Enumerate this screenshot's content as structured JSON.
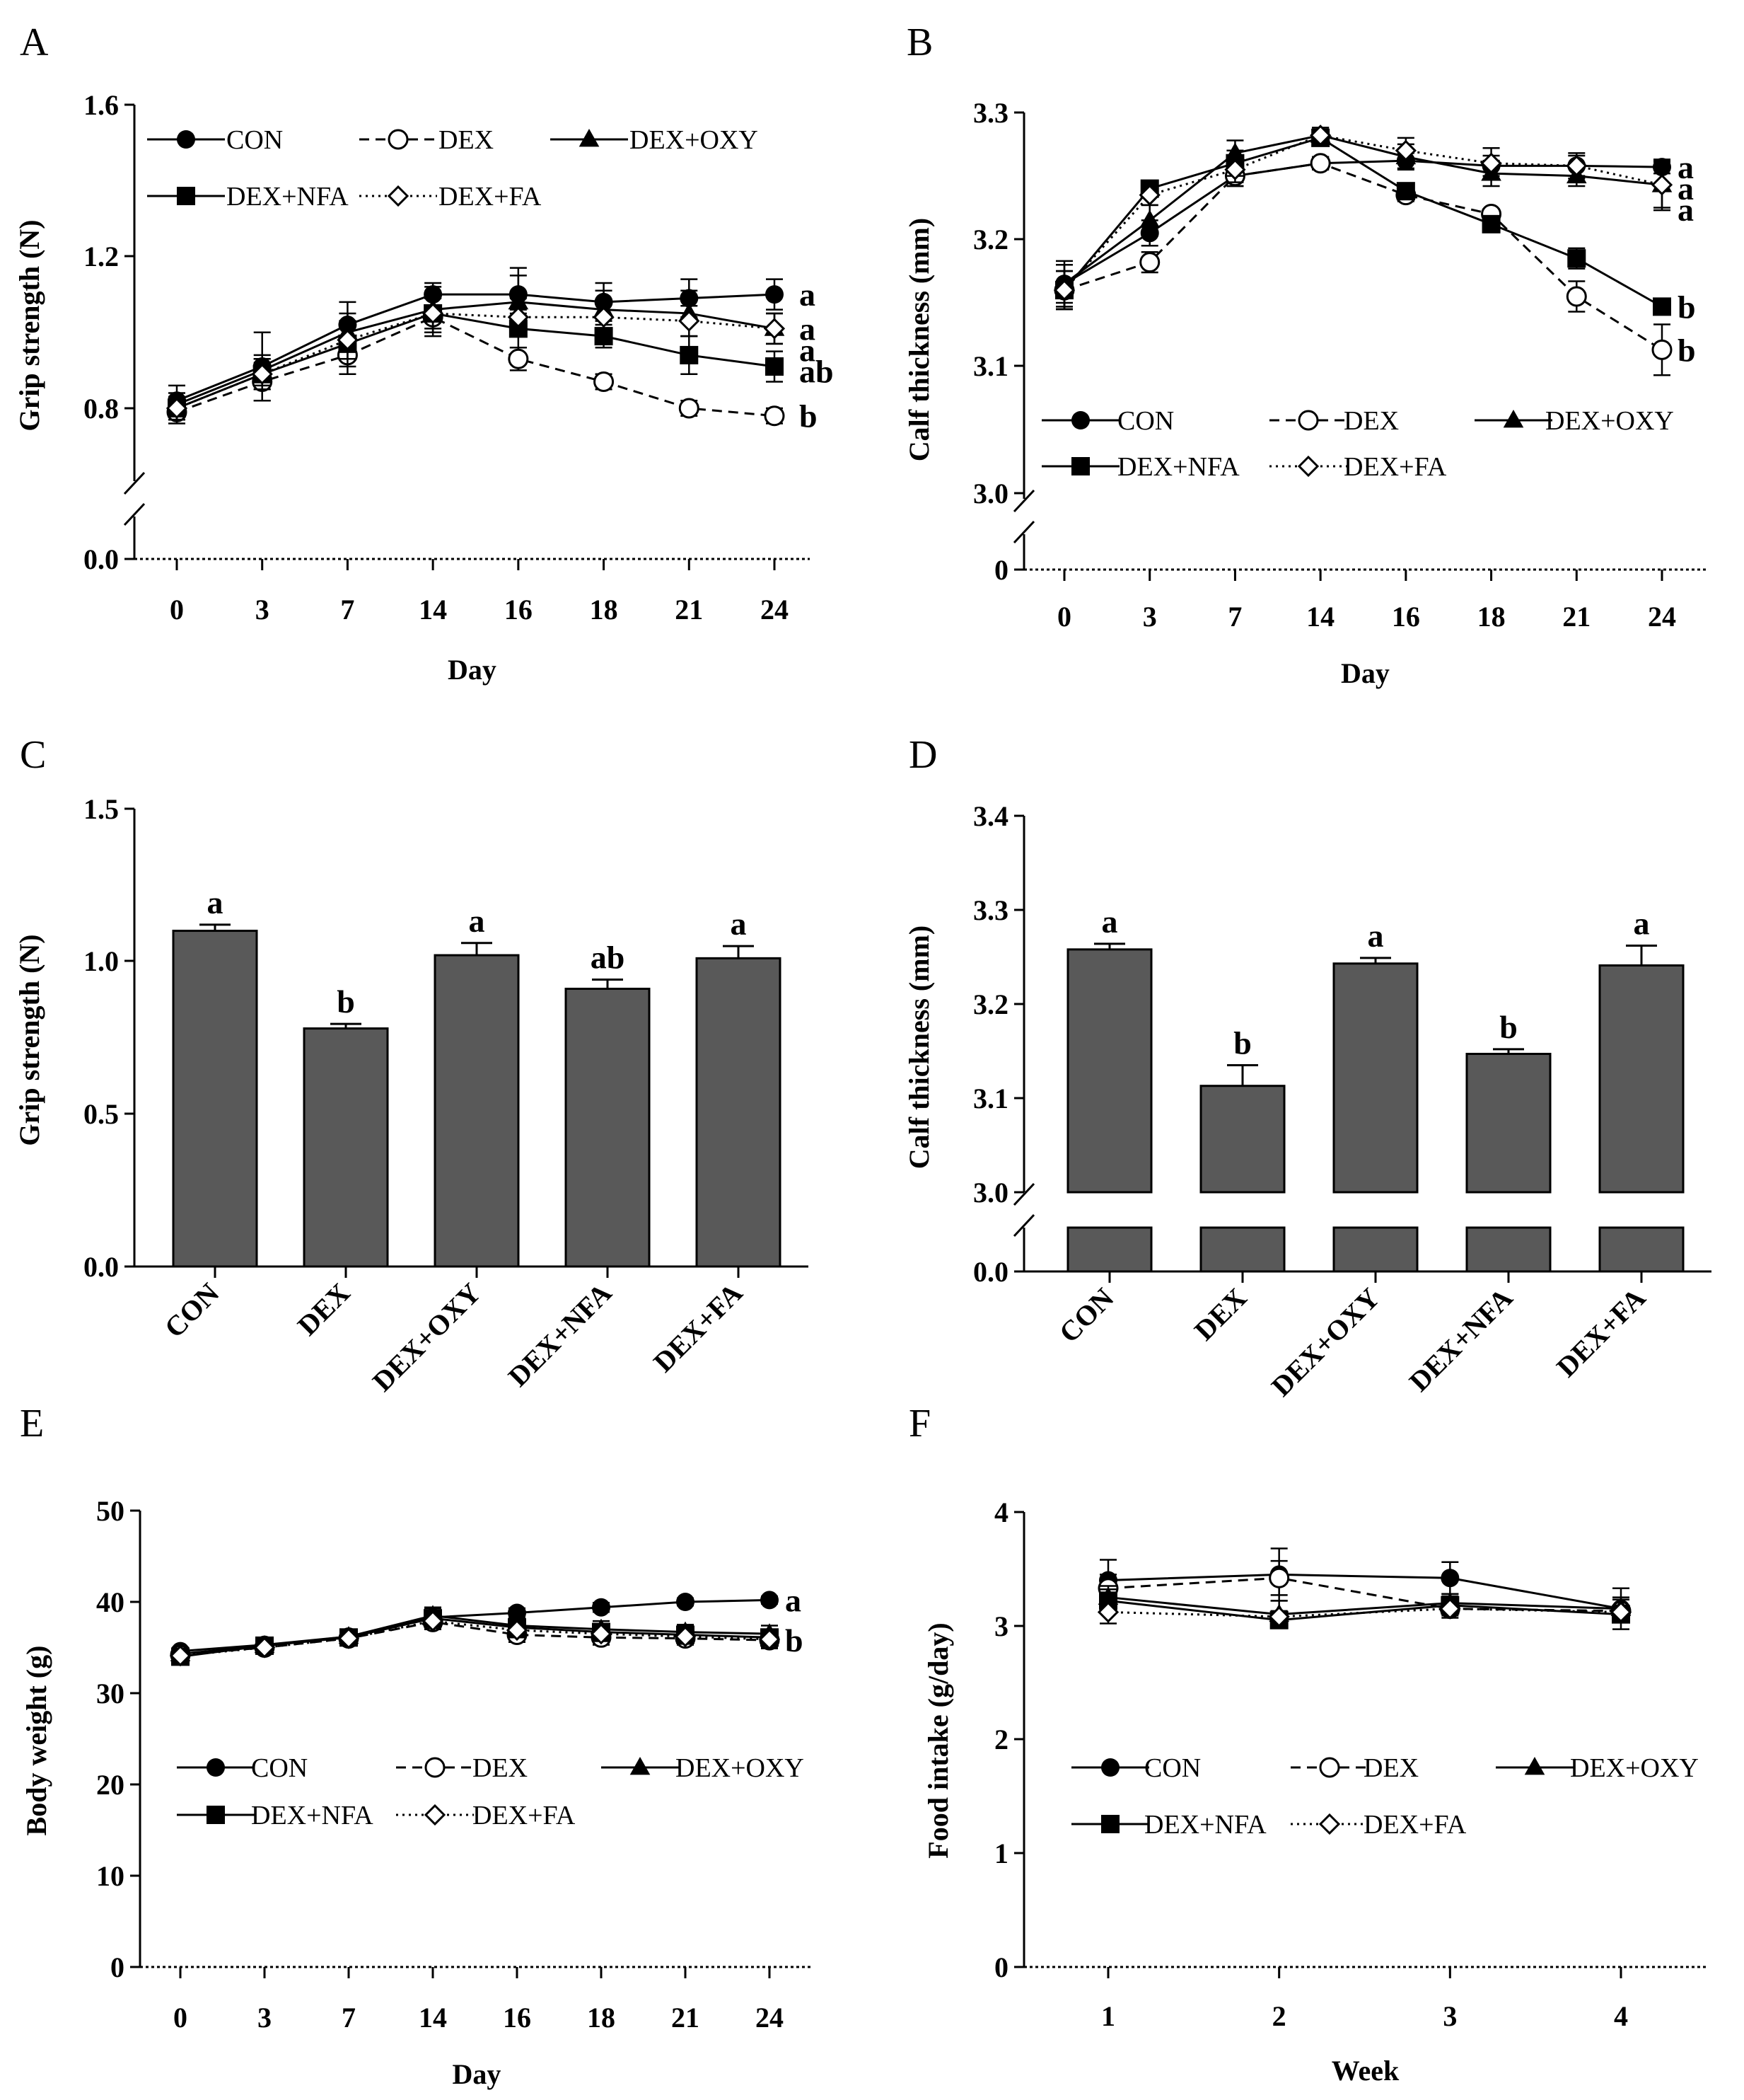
{
  "colors": {
    "bar_fill": "#595959",
    "ink": "#000000",
    "background": "#ffffff"
  },
  "groups": [
    "CON",
    "DEX",
    "DEX+OXY",
    "DEX+NFA",
    "DEX+FA"
  ],
  "chart_data": [
    {
      "panel": "A",
      "type": "line",
      "ylabel": "Grip strength (N)",
      "xlabel": "Day",
      "categories": [
        "0",
        "3",
        "7",
        "14",
        "16",
        "18",
        "21",
        "24"
      ],
      "yticks": [
        "0.0",
        "0.8",
        "1.2",
        "1.6"
      ],
      "ylim": [
        0.0,
        1.6
      ],
      "axis_break": [
        0.0,
        0.6
      ],
      "series": [
        {
          "name": "CON",
          "values": [
            0.82,
            0.91,
            1.02,
            1.1,
            1.1,
            1.08,
            1.09,
            1.1
          ],
          "err": [
            0.04,
            0.09,
            0.06,
            0.03,
            0.05,
            0.05,
            0.05,
            0.04
          ],
          "marker": "filled-circle",
          "dash": "solid"
        },
        {
          "name": "DEX",
          "values": [
            0.79,
            0.87,
            0.94,
            1.04,
            0.93,
            0.87,
            0.8,
            0.78
          ],
          "err": [
            0.03,
            0.05,
            0.05,
            0.05,
            0.03,
            0.02,
            0.02,
            0.02
          ],
          "marker": "open-circle",
          "dash": "dashed"
        },
        {
          "name": "DEX+OXY",
          "values": [
            0.81,
            0.9,
            1.0,
            1.06,
            1.08,
            1.06,
            1.05,
            1.01
          ],
          "err": [
            0.03,
            0.04,
            0.05,
            0.06,
            0.09,
            0.05,
            0.06,
            0.04
          ],
          "marker": "filled-triangle",
          "dash": "solid"
        },
        {
          "name": "DEX+NFA",
          "values": [
            0.8,
            0.89,
            0.97,
            1.05,
            1.01,
            0.99,
            0.94,
            0.91
          ],
          "err": [
            0.03,
            0.04,
            0.06,
            0.04,
            0.05,
            0.03,
            0.05,
            0.04
          ],
          "marker": "filled-square",
          "dash": "solid"
        },
        {
          "name": "DEX+FA",
          "values": [
            0.8,
            0.89,
            0.98,
            1.05,
            1.04,
            1.04,
            1.03,
            1.01
          ],
          "err": [
            0.03,
            0.04,
            0.05,
            0.05,
            0.05,
            0.04,
            0.04,
            0.04
          ],
          "marker": "open-diamond",
          "dash": "dotted"
        }
      ],
      "sig_labels": [
        {
          "series": "CON",
          "text": "a"
        },
        {
          "series": "DEX+OXY",
          "text": "a"
        },
        {
          "series": "DEX+FA",
          "text": "a"
        },
        {
          "series": "DEX+NFA",
          "text": "ab"
        },
        {
          "series": "DEX",
          "text": "b"
        }
      ]
    },
    {
      "panel": "B",
      "type": "line",
      "ylabel": "Calf thickness (mm)",
      "xlabel": "Day",
      "categories": [
        "0",
        "3",
        "7",
        "14",
        "16",
        "18",
        "21",
        "24"
      ],
      "yticks": [
        "0",
        "3.0",
        "3.1",
        "3.2",
        "3.3"
      ],
      "ylim": [
        0.0,
        3.3
      ],
      "axis_break": [
        0.0,
        3.0
      ],
      "series": [
        {
          "name": "CON",
          "values": [
            3.165,
            3.205,
            3.25,
            3.26,
            3.262,
            3.258,
            3.258,
            3.257
          ],
          "err": [
            0.015,
            0.01,
            0.008,
            0.005,
            0.006,
            0.008,
            0.008,
            0.005
          ],
          "marker": "filled-circle",
          "dash": "solid"
        },
        {
          "name": "DEX",
          "values": [
            3.16,
            3.182,
            3.25,
            3.26,
            3.235,
            3.22,
            3.155,
            3.113
          ],
          "err": [
            0.015,
            0.008,
            0.008,
            0.005,
            0.005,
            0.004,
            0.012,
            0.02
          ],
          "marker": "open-circle",
          "dash": "dashed"
        },
        {
          "name": "DEX+OXY",
          "values": [
            3.165,
            3.215,
            3.268,
            3.282,
            3.265,
            3.252,
            3.25,
            3.243
          ],
          "err": [
            0.018,
            0.012,
            0.01,
            0.006,
            0.01,
            0.01,
            0.008,
            0.02
          ],
          "marker": "filled-triangle",
          "dash": "solid"
        },
        {
          "name": "DEX+NFA",
          "values": [
            3.16,
            3.24,
            3.26,
            3.28,
            3.238,
            3.212,
            3.185,
            3.147
          ],
          "err": [
            0.015,
            0.006,
            0.01,
            0.006,
            0.006,
            0.006,
            0.008,
            0.005
          ],
          "marker": "filled-square",
          "dash": "solid"
        },
        {
          "name": "DEX+FA",
          "values": [
            3.16,
            3.235,
            3.255,
            3.282,
            3.27,
            3.26,
            3.258,
            3.243
          ],
          "err": [
            0.015,
            0.008,
            0.01,
            0.006,
            0.01,
            0.012,
            0.01,
            0.018
          ],
          "marker": "open-diamond",
          "dash": "dotted"
        }
      ],
      "sig_labels": [
        {
          "series": "CON",
          "text": "a"
        },
        {
          "series": "DEX+FA",
          "text": "a"
        },
        {
          "series": "DEX+OXY",
          "text": "a"
        },
        {
          "series": "DEX+NFA",
          "text": "b"
        },
        {
          "series": "DEX",
          "text": "b"
        }
      ]
    },
    {
      "panel": "C",
      "type": "bar",
      "ylabel": "Grip strength (N)",
      "categories": [
        "CON",
        "DEX",
        "DEX+OXY",
        "DEX+NFA",
        "DEX+FA"
      ],
      "values": [
        1.1,
        0.78,
        1.02,
        0.91,
        1.01
      ],
      "err": [
        0.02,
        0.015,
        0.04,
        0.03,
        0.04
      ],
      "sig": [
        "a",
        "b",
        "a",
        "ab",
        "a"
      ],
      "yticks": [
        "0.0",
        "0.5",
        "1.0",
        "1.5"
      ],
      "ylim": [
        0.0,
        1.5
      ]
    },
    {
      "panel": "D",
      "type": "bar",
      "ylabel": "Calf thickness (mm)",
      "categories": [
        "CON",
        "DEX",
        "DEX+OXY",
        "DEX+NFA",
        "DEX+FA"
      ],
      "values": [
        3.258,
        3.113,
        3.243,
        3.147,
        3.241
      ],
      "err": [
        0.006,
        0.022,
        0.006,
        0.005,
        0.021
      ],
      "sig": [
        "a",
        "b",
        "a",
        "b",
        "a"
      ],
      "yticks": [
        "0.0",
        "3.0",
        "3.1",
        "3.2",
        "3.3",
        "3.4"
      ],
      "ylim": [
        0.0,
        3.4
      ],
      "axis_break": [
        0.0,
        3.0
      ]
    },
    {
      "panel": "E",
      "type": "line",
      "ylabel": "Body weight  (g)",
      "xlabel": "Day",
      "categories": [
        "0",
        "3",
        "7",
        "14",
        "16",
        "18",
        "21",
        "24"
      ],
      "yticks": [
        "0",
        "10",
        "20",
        "30",
        "40",
        "50"
      ],
      "ylim": [
        0,
        50
      ],
      "series": [
        {
          "name": "CON",
          "values": [
            34.6,
            35.3,
            36.2,
            38.3,
            38.8,
            39.4,
            40.0,
            40.2
          ],
          "err": [
            0.4,
            0.5,
            0.5,
            1.0,
            0.5,
            0.5,
            0.4,
            0.4
          ],
          "marker": "filled-circle",
          "dash": "solid"
        },
        {
          "name": "DEX",
          "values": [
            34.2,
            35.0,
            36.0,
            37.8,
            36.4,
            36.1,
            36.0,
            35.8
          ],
          "err": [
            0.4,
            0.5,
            0.6,
            0.8,
            0.8,
            0.8,
            0.7,
            0.9
          ],
          "marker": "open-circle",
          "dash": "dashed"
        },
        {
          "name": "DEX+OXY",
          "values": [
            34.3,
            35.2,
            36.2,
            38.5,
            37.4,
            37.0,
            36.7,
            36.5
          ],
          "err": [
            0.4,
            0.5,
            0.5,
            0.9,
            0.8,
            0.9,
            0.8,
            0.9
          ],
          "marker": "filled-triangle",
          "dash": "solid"
        },
        {
          "name": "DEX+NFA",
          "values": [
            34.0,
            35.2,
            36.1,
            38.2,
            37.2,
            36.7,
            36.4,
            36.1
          ],
          "err": [
            0.4,
            0.5,
            0.5,
            0.9,
            0.8,
            0.9,
            0.8,
            0.9
          ],
          "marker": "filled-square",
          "dash": "solid"
        },
        {
          "name": "DEX+FA",
          "values": [
            34.1,
            35.0,
            36.0,
            37.9,
            36.9,
            36.5,
            36.2,
            35.9
          ],
          "err": [
            0.4,
            0.5,
            0.5,
            0.8,
            0.8,
            0.8,
            0.8,
            0.9
          ],
          "marker": "open-diamond",
          "dash": "dotted"
        }
      ],
      "sig_labels": [
        {
          "series": "CON",
          "text": "a"
        },
        {
          "series": "DEX",
          "text": "b"
        }
      ]
    },
    {
      "panel": "F",
      "type": "line",
      "ylabel": "Food intake (g/day)",
      "xlabel": "Week",
      "categories": [
        "1",
        "2",
        "3",
        "4"
      ],
      "yticks": [
        "0",
        "1",
        "2",
        "3",
        "4"
      ],
      "ylim": [
        0,
        4
      ],
      "series": [
        {
          "name": "CON",
          "values": [
            3.4,
            3.45,
            3.42,
            3.15
          ],
          "err": [
            0.18,
            0.23,
            0.14,
            0.18
          ],
          "marker": "filled-circle",
          "dash": "solid"
        },
        {
          "name": "DEX",
          "values": [
            3.33,
            3.42,
            3.15,
            3.13
          ],
          "err": [
            0.12,
            0.15,
            0.08,
            0.1
          ],
          "marker": "open-circle",
          "dash": "dashed"
        },
        {
          "name": "DEX+OXY",
          "values": [
            3.25,
            3.1,
            3.2,
            3.15
          ],
          "err": [
            0.1,
            0.12,
            0.08,
            0.1
          ],
          "marker": "filled-triangle",
          "dash": "solid"
        },
        {
          "name": "DEX+NFA",
          "values": [
            3.22,
            3.05,
            3.18,
            3.1
          ],
          "err": [
            0.1,
            0.05,
            0.08,
            0.05
          ],
          "marker": "filled-square",
          "dash": "solid"
        },
        {
          "name": "DEX+FA",
          "values": [
            3.12,
            3.08,
            3.15,
            3.12
          ],
          "err": [
            0.1,
            0.05,
            0.06,
            0.06
          ],
          "marker": "open-diamond",
          "dash": "dotted"
        }
      ]
    }
  ]
}
